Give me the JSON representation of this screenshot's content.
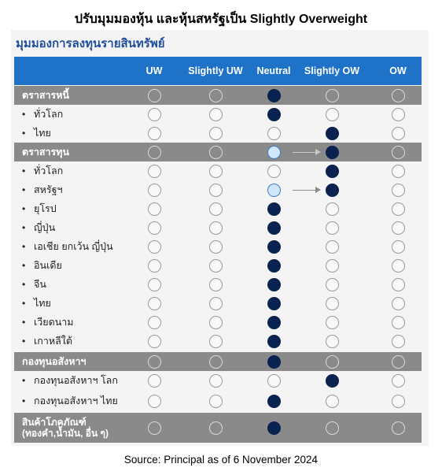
{
  "title": "ปรับมุมมองหุ้น และหุ้นสหรัฐเป็น Slightly Overweight",
  "subtitle": "มุมมองการลงทุนรายสินทรัพย์",
  "columns": [
    "UW",
    "Slightly UW",
    "Neutral",
    "Slightly OW",
    "OW"
  ],
  "rows": [
    {
      "label": "ตราสารหนี้",
      "type": "category",
      "filled": 2,
      "light": null,
      "arrow": false
    },
    {
      "label": "ทั่วโลก",
      "type": "sub",
      "filled": 2,
      "light": null,
      "arrow": false
    },
    {
      "label": "ไทย",
      "type": "sub",
      "filled": 3,
      "light": null,
      "arrow": false
    },
    {
      "label": "ตราสารทุน",
      "type": "category",
      "filled": 3,
      "light": 2,
      "arrow": true
    },
    {
      "label": "ทั่วโลก",
      "type": "sub",
      "filled": 3,
      "light": null,
      "arrow": false
    },
    {
      "label": "สหรัฐฯ",
      "type": "sub",
      "filled": 3,
      "light": 2,
      "arrow": true
    },
    {
      "label": "ยุโรป",
      "type": "sub",
      "filled": 2,
      "light": null,
      "arrow": false
    },
    {
      "label": "ญี่ปุ่น",
      "type": "sub",
      "filled": 2,
      "light": null,
      "arrow": false
    },
    {
      "label": "เอเชีย ยกเว้น ญี่ปุ่น",
      "type": "sub",
      "filled": 2,
      "light": null,
      "arrow": false
    },
    {
      "label": "อินเดีย",
      "type": "sub",
      "filled": 2,
      "light": null,
      "arrow": false
    },
    {
      "label": "จีน",
      "type": "sub",
      "filled": 2,
      "light": null,
      "arrow": false
    },
    {
      "label": "ไทย",
      "type": "sub",
      "filled": 2,
      "light": null,
      "arrow": false
    },
    {
      "label": "เวียดนาม",
      "type": "sub",
      "filled": 2,
      "light": null,
      "arrow": false
    },
    {
      "label": "เกาหลีใต้",
      "type": "sub",
      "filled": 2,
      "light": null,
      "arrow": false
    },
    {
      "label": "กองทุนอสังหาฯ",
      "type": "category",
      "filled": 2,
      "light": null,
      "arrow": false
    },
    {
      "label": "กองทุนอสังหาฯ โลก",
      "type": "sub",
      "filled": 3,
      "light": null,
      "arrow": false
    },
    {
      "label": "กองทุนอสังหาฯ ไทย",
      "type": "sub",
      "filled": 2,
      "light": null,
      "arrow": false
    },
    {
      "label": "สินค้าโภคภัณฑ์\n(ทองคำ,น้ำมัน, อื่น ๆ)",
      "type": "category-tall",
      "filled": 2,
      "light": null,
      "arrow": false
    }
  ],
  "bullet": "•",
  "source": "Source: Principal as of 6 November 2024",
  "colors": {
    "header": "#1e72c8",
    "category": "#8a8a8a",
    "filled": "#0a2250",
    "light": "#cfe6fb",
    "subtitle": "#1f4e9c"
  }
}
